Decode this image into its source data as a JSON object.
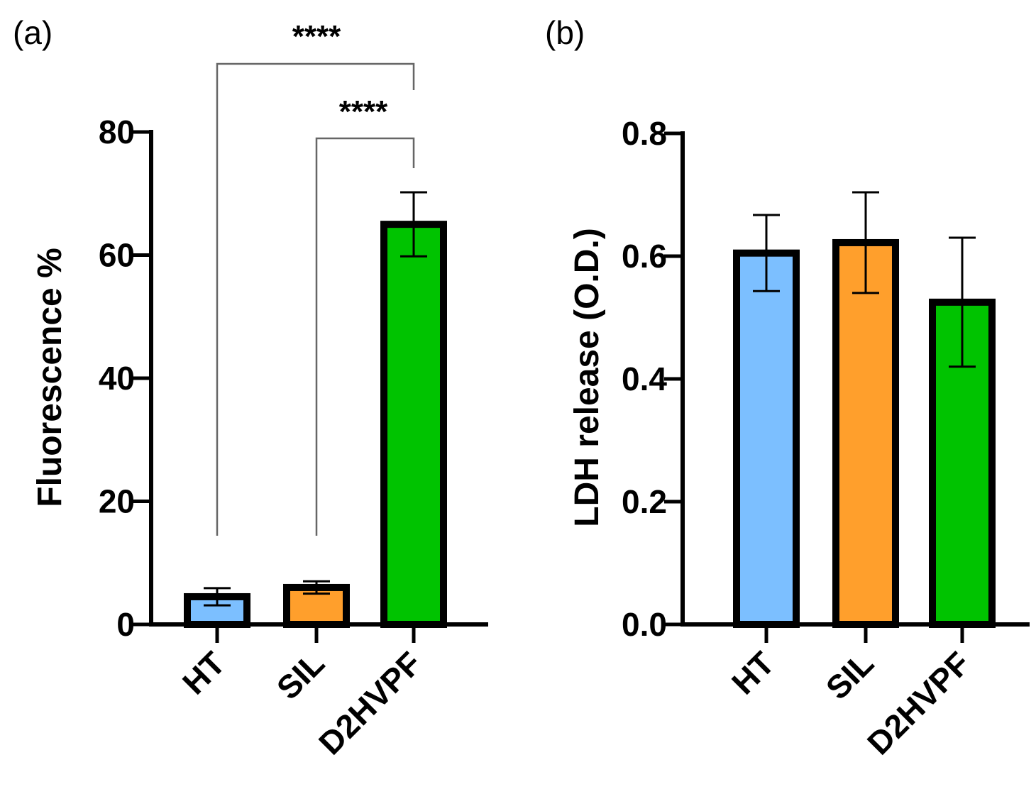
{
  "colors": {
    "HT": "#7cbfff",
    "SIL": "#ff9f2c",
    "D2HVPF": "#00c300"
  },
  "chart_data": [
    {
      "panel": "(a)",
      "type": "bar",
      "categories": [
        "HT",
        "SIL",
        "D2HVPF"
      ],
      "values": [
        4.5,
        6.0,
        65.0
      ],
      "errors": [
        1.4,
        1.0,
        5.2
      ],
      "ylabel": "Fluorescence %",
      "ylim": [
        0,
        80
      ],
      "yticks": [
        0,
        20,
        40,
        60,
        80
      ],
      "yticklabels": [
        "0",
        "20",
        "40",
        "60",
        "80"
      ],
      "significance": [
        {
          "from": "HT",
          "to": "D2HVPF",
          "label": "****"
        },
        {
          "from": "SIL",
          "to": "D2HVPF",
          "label": "****"
        }
      ]
    },
    {
      "panel": "(b)",
      "type": "bar",
      "categories": [
        "HT",
        "SIL",
        "D2HVPF"
      ],
      "values": [
        0.605,
        0.622,
        0.525
      ],
      "errors": [
        0.062,
        0.082,
        0.105
      ],
      "ylabel": "LDH release (O.D.)",
      "ylim": [
        0,
        0.8
      ],
      "yticks": [
        0,
        0.2,
        0.4,
        0.6,
        0.8
      ],
      "yticklabels": [
        "0.0",
        "0.2",
        "0.4",
        "0.6",
        "0.8"
      ],
      "significance": []
    }
  ]
}
